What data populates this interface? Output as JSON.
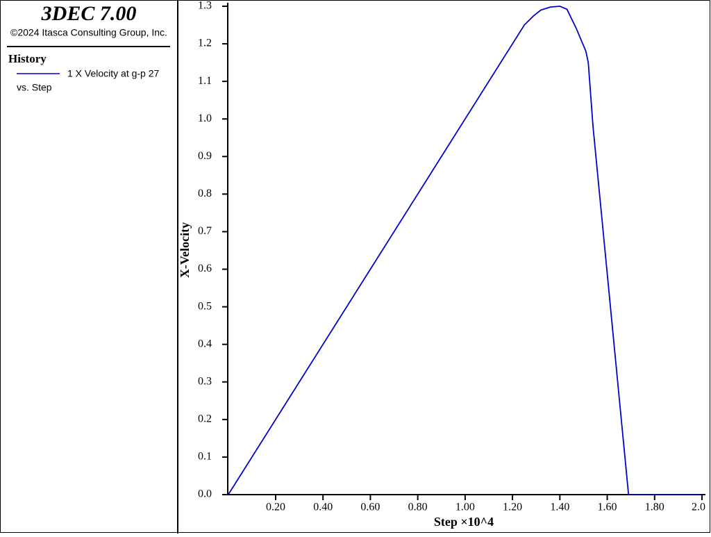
{
  "header": {
    "title": "3DEC 7.00",
    "copyright": "©2024 Itasca Consulting Group, Inc.",
    "section": "History"
  },
  "chart_data": {
    "type": "line",
    "xlabel": "Step ×10^4",
    "ylabel": "X-Velocity",
    "xlabel_note": "vs. Step",
    "x": [
      0,
      1.25,
      1.29,
      1.32,
      1.36,
      1.4,
      1.43,
      1.47,
      1.51,
      1.52,
      1.54,
      1.69,
      2.0
    ],
    "series": [
      {
        "name": "1 X Velocity at g-p 27",
        "color": "#0000cc",
        "values": [
          0,
          1.25,
          1.275,
          1.29,
          1.298,
          1.3,
          1.292,
          1.24,
          1.18,
          1.15,
          0.98,
          0,
          0
        ]
      }
    ],
    "xlim": [
      0,
      2.0
    ],
    "ylim": [
      0,
      1.3
    ],
    "xticks": [
      {
        "value": 0.2,
        "label": "0.20"
      },
      {
        "value": 0.4,
        "label": "0.40"
      },
      {
        "value": 0.6,
        "label": "0.60"
      },
      {
        "value": 0.8,
        "label": "0.80"
      },
      {
        "value": 1.0,
        "label": "1.00"
      },
      {
        "value": 1.2,
        "label": "1.20"
      },
      {
        "value": 1.4,
        "label": "1.40"
      },
      {
        "value": 1.6,
        "label": "1.60"
      },
      {
        "value": 1.8,
        "label": "1.80"
      },
      {
        "value": 2.0,
        "label": "2.0"
      }
    ],
    "yticks": [
      {
        "value": 0,
        "label": "0.0"
      },
      0.1,
      0.2,
      0.3,
      0.4,
      0.5,
      0.6,
      0.7,
      0.8,
      0.9,
      {
        "value": 1.0,
        "label": "1.0"
      },
      1.1,
      1.2,
      1.3
    ]
  }
}
